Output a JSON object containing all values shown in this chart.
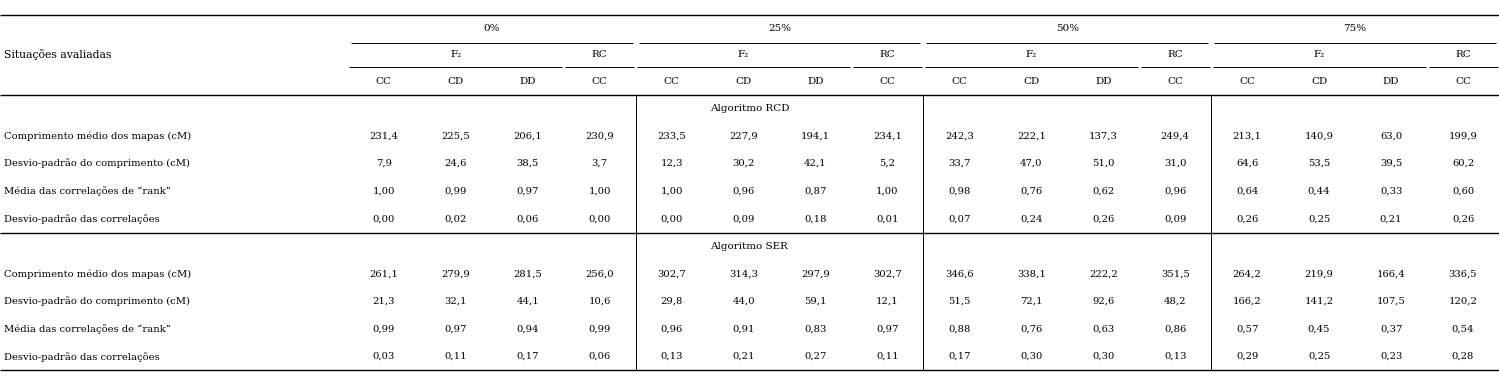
{
  "title_col": "Situações avaliadas",
  "pct_headers": [
    "0%",
    "25%",
    "50%",
    "75%"
  ],
  "f2_label": "F₂",
  "rc_label": "RC",
  "sub_headers": [
    "CC",
    "CD",
    "DD",
    "CC"
  ],
  "algo_rcd_label": "Algoritmo RCD",
  "algo_ser_label": "Algoritmo SER",
  "row_labels": [
    "Comprimento médio dos mapas (cM)",
    "Desvio-padrão do comprimento (cM)",
    "Média das correlações de “rank”",
    "Desvio-padrão das correlações"
  ],
  "rcd_data": [
    [
      "231,4",
      "225,5",
      "206,1",
      "230,9",
      "233,5",
      "227,9",
      "194,1",
      "234,1",
      "242,3",
      "222,1",
      "137,3",
      "249,4",
      "213,1",
      "140,9",
      "63,0",
      "199,9"
    ],
    [
      "7,9",
      "24,6",
      "38,5",
      "3,7",
      "12,3",
      "30,2",
      "42,1",
      "5,2",
      "33,7",
      "47,0",
      "51,0",
      "31,0",
      "64,6",
      "53,5",
      "39,5",
      "60,2"
    ],
    [
      "1,00",
      "0,99",
      "0,97",
      "1,00",
      "1,00",
      "0,96",
      "0,87",
      "1,00",
      "0,98",
      "0,76",
      "0,62",
      "0,96",
      "0,64",
      "0,44",
      "0,33",
      "0,60"
    ],
    [
      "0,00",
      "0,02",
      "0,06",
      "0,00",
      "0,00",
      "0,09",
      "0,18",
      "0,01",
      "0,07",
      "0,24",
      "0,26",
      "0,09",
      "0,26",
      "0,25",
      "0,21",
      "0,26"
    ]
  ],
  "ser_data": [
    [
      "261,1",
      "279,9",
      "281,5",
      "256,0",
      "302,7",
      "314,3",
      "297,9",
      "302,7",
      "346,6",
      "338,1",
      "222,2",
      "351,5",
      "264,2",
      "219,9",
      "166,4",
      "336,5"
    ],
    [
      "21,3",
      "32,1",
      "44,1",
      "10,6",
      "29,8",
      "44,0",
      "59,1",
      "12,1",
      "51,5",
      "72,1",
      "92,6",
      "48,2",
      "166,2",
      "141,2",
      "107,5",
      "120,2"
    ],
    [
      "0,99",
      "0,97",
      "0,94",
      "0,99",
      "0,96",
      "0,91",
      "0,83",
      "0,97",
      "0,88",
      "0,76",
      "0,63",
      "0,86",
      "0,57",
      "0,45",
      "0,37",
      "0,54"
    ],
    [
      "0,03",
      "0,11",
      "0,17",
      "0,06",
      "0,13",
      "0,21",
      "0,27",
      "0,11",
      "0,17",
      "0,30",
      "0,30",
      "0,13",
      "0,29",
      "0,25",
      "0,23",
      "0,28"
    ]
  ],
  "bg_color": "#ffffff",
  "text_color": "#000000",
  "line_color": "#000000",
  "font_size": 7.2,
  "header_font_size": 7.5
}
